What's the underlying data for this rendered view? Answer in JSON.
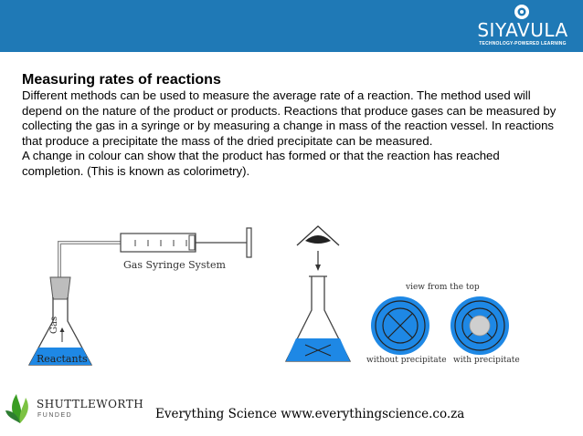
{
  "header": {
    "brand_name": "SIYAVULA",
    "brand_tagline": "TECHNOLOGY-POWERED LEARNING",
    "background_color": "#1f79b6"
  },
  "content": {
    "title": "Measuring rates of reactions",
    "paragraphs": [
      "Different methods can be used to measure the average rate of a reaction. The method used will depend on the nature of the product or products. Reactions that produce gases can be measured by collecting the gas in a syringe or by measuring a change in mass of the reaction vessel. In reactions that produce a precipitate the mass of the dried precipitate can be measured.",
      "A change in colour can show that the product has formed or that the reaction has reached completion. (This is known as colorimetry)."
    ]
  },
  "diagram": {
    "syringe_label": "Gas Syringe System",
    "gas_label": "Gas",
    "reactants_label": "Reactants",
    "view_label": "view from the top",
    "without_label": "without precipitate",
    "with_label": "with precipitate",
    "liquid_color": "#1e88e5"
  },
  "footer": {
    "sponsor_name": "SHUTTLEWORTH",
    "sponsor_sub": "FUNDED",
    "site_text": "Everything Science www.everythingscience.co.za"
  }
}
